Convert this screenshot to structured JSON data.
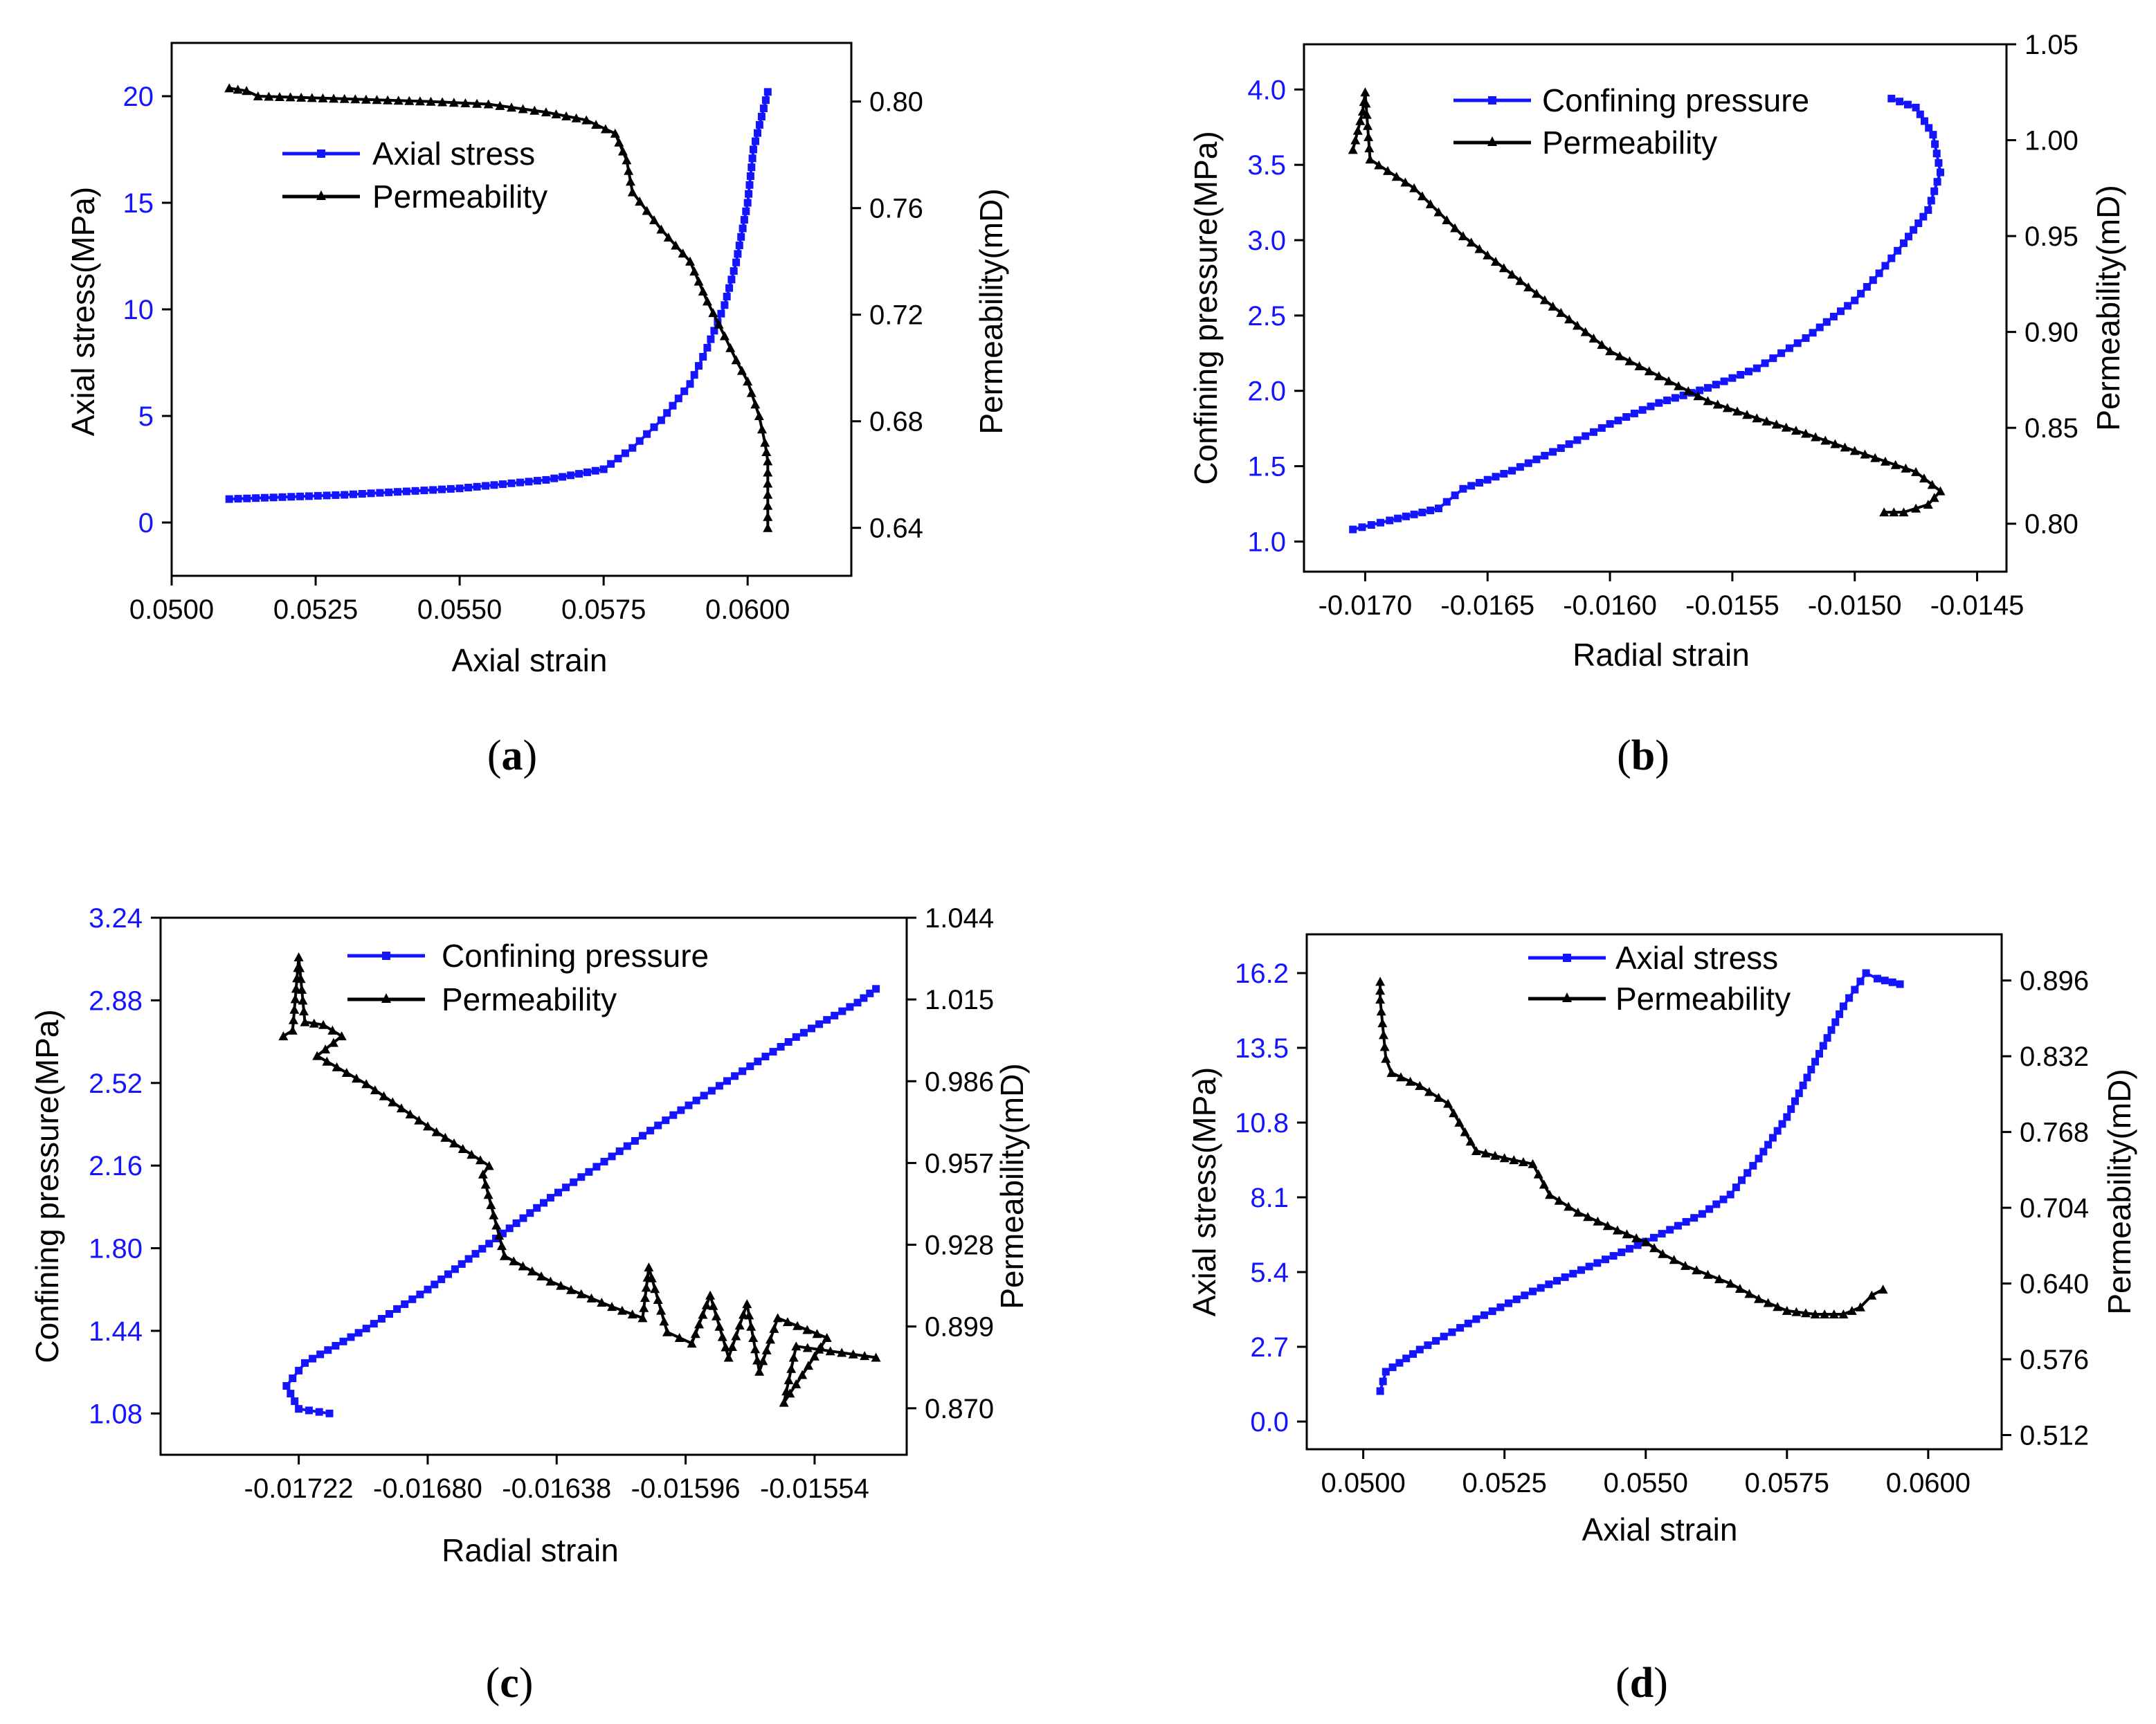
{
  "colors": {
    "blue": "#1414ff",
    "black": "#000000"
  },
  "chart_data": [
    {
      "id": "a",
      "caption_label": "a",
      "type": "line",
      "xlabel": "Axial strain",
      "ylabel": "Axial stress(MPa)",
      "y2label": "Permeability(mD)",
      "xlim": [
        0.05,
        0.0618
      ],
      "ylim": [
        -2.5,
        22.5
      ],
      "y2lim": [
        0.622,
        0.822
      ],
      "xticks": [
        0.05,
        0.0525,
        0.055,
        0.0575,
        0.06
      ],
      "xtick_labels": [
        "0.0500",
        "0.0525",
        "0.0550",
        "0.0575",
        "0.0600"
      ],
      "yticks": [
        0,
        5,
        10,
        15,
        20
      ],
      "ytick_labels": [
        "0",
        "5",
        "10",
        "15",
        "20"
      ],
      "y2ticks": [
        0.64,
        0.68,
        0.72,
        0.76,
        0.8
      ],
      "y2tick_labels": [
        "0.64",
        "0.68",
        "0.72",
        "0.76",
        "0.80"
      ],
      "legend": "upper-left",
      "series": [
        {
          "name": "Axial stress",
          "axis": "left",
          "marker": "square",
          "color": "#1414ff",
          "points": [
            [
              0.051,
              1.1
            ],
            [
              0.053,
              1.3
            ],
            [
              0.055,
              1.6
            ],
            [
              0.0565,
              2.0
            ],
            [
              0.0575,
              2.5
            ],
            [
              0.058,
              3.5
            ],
            [
              0.0585,
              4.8
            ],
            [
              0.059,
              6.5
            ],
            [
              0.0593,
              8.2
            ],
            [
              0.0596,
              10.2
            ],
            [
              0.0598,
              12.2
            ],
            [
              0.06,
              15.0
            ],
            [
              0.0601,
              17.5
            ],
            [
              0.06035,
              20.2
            ]
          ]
        },
        {
          "name": "Permeability",
          "axis": "right",
          "marker": "triangle",
          "color": "#000000",
          "points": [
            [
              0.051,
              0.805
            ],
            [
              0.0513,
              0.804
            ],
            [
              0.0515,
              0.802
            ],
            [
              0.053,
              0.801
            ],
            [
              0.0545,
              0.8
            ],
            [
              0.0555,
              0.799
            ],
            [
              0.0565,
              0.796
            ],
            [
              0.0572,
              0.793
            ],
            [
              0.0577,
              0.788
            ],
            [
              0.0579,
              0.778
            ],
            [
              0.058,
              0.766
            ],
            [
              0.0585,
              0.752
            ],
            [
              0.059,
              0.74
            ],
            [
              0.0593,
              0.725
            ],
            [
              0.0596,
              0.712
            ],
            [
              0.0598,
              0.703
            ],
            [
              0.06,
              0.695
            ],
            [
              0.0602,
              0.682
            ],
            [
              0.0603,
              0.672
            ],
            [
              0.06035,
              0.665
            ],
            [
              0.06035,
              0.64
            ]
          ]
        }
      ]
    },
    {
      "id": "b",
      "caption_label": "b",
      "type": "line",
      "xlabel": "Radial strain",
      "ylabel": "Confining pressure(MPa)",
      "y2label": "Permeability(mD)",
      "xlim": [
        -0.01725,
        -0.01438
      ],
      "ylim": [
        0.8,
        4.3
      ],
      "y2lim": [
        0.775,
        1.05
      ],
      "xticks": [
        -0.017,
        -0.0165,
        -0.016,
        -0.0155,
        -0.015,
        -0.0145
      ],
      "xtick_labels": [
        "-0.0170",
        "-0.0165",
        "-0.0160",
        "-0.0155",
        "-0.0150",
        "-0.0145"
      ],
      "yticks": [
        1.0,
        1.5,
        2.0,
        2.5,
        3.0,
        3.5,
        4.0
      ],
      "ytick_labels": [
        "1.0",
        "1.5",
        "2.0",
        "2.5",
        "3.0",
        "3.5",
        "4.0"
      ],
      "y2ticks": [
        0.8,
        0.85,
        0.9,
        0.95,
        1.0,
        1.05
      ],
      "y2tick_labels": [
        "0.80",
        "0.85",
        "0.90",
        "0.95",
        "1.00",
        "1.05"
      ],
      "legend": "upper-center",
      "series": [
        {
          "name": "Confining pressure",
          "axis": "left",
          "marker": "square",
          "color": "#1414ff",
          "points": [
            [
              -0.01705,
              1.08
            ],
            [
              -0.0169,
              1.14
            ],
            [
              -0.0167,
              1.22
            ],
            [
              -0.0166,
              1.35
            ],
            [
              -0.0164,
              1.47
            ],
            [
              -0.0162,
              1.62
            ],
            [
              -0.016,
              1.78
            ],
            [
              -0.0158,
              1.92
            ],
            [
              -0.0156,
              2.02
            ],
            [
              -0.0154,
              2.15
            ],
            [
              -0.0152,
              2.35
            ],
            [
              -0.015,
              2.6
            ],
            [
              -0.0149,
              2.78
            ],
            [
              -0.0148,
              2.98
            ],
            [
              -0.0147,
              3.2
            ],
            [
              -0.01465,
              3.45
            ],
            [
              -0.01468,
              3.7
            ],
            [
              -0.01475,
              3.88
            ],
            [
              -0.01485,
              3.94
            ]
          ]
        },
        {
          "name": "Permeability",
          "axis": "right",
          "marker": "triangle",
          "color": "#000000",
          "points": [
            [
              -0.01705,
              0.995
            ],
            [
              -0.01701,
              1.015
            ],
            [
              -0.017,
              1.025
            ],
            [
              -0.01698,
              0.99
            ],
            [
              -0.0168,
              0.975
            ],
            [
              -0.0166,
              0.95
            ],
            [
              -0.0164,
              0.93
            ],
            [
              -0.0162,
              0.91
            ],
            [
              -0.016,
              0.89
            ],
            [
              -0.0158,
              0.877
            ],
            [
              -0.0156,
              0.864
            ],
            [
              -0.0154,
              0.855
            ],
            [
              -0.0152,
              0.847
            ],
            [
              -0.015,
              0.838
            ],
            [
              -0.01475,
              0.827
            ],
            [
              -0.01465,
              0.817
            ],
            [
              -0.0147,
              0.81
            ],
            [
              -0.0148,
              0.806
            ],
            [
              -0.01488,
              0.806
            ]
          ]
        }
      ]
    },
    {
      "id": "c",
      "caption_label": "c",
      "type": "line",
      "xlabel": "Radial strain",
      "ylabel": "Confining pressure(MPa)",
      "y2label": "Permeability(mD)",
      "xlim": [
        -0.01767,
        -0.01524
      ],
      "ylim": [
        0.9,
        3.24
      ],
      "y2lim": [
        0.8535,
        1.044
      ],
      "xticks": [
        -0.01722,
        -0.0168,
        -0.01638,
        -0.01596,
        -0.01554
      ],
      "xtick_labels": [
        "-0.01722",
        "-0.01680",
        "-0.01638",
        "-0.01596",
        "-0.01554"
      ],
      "yticks": [
        1.08,
        1.44,
        1.8,
        2.16,
        2.52,
        2.88,
        3.24
      ],
      "ytick_labels": [
        "1.08",
        "1.44",
        "1.80",
        "2.16",
        "2.52",
        "2.88",
        "3.24"
      ],
      "y2ticks": [
        0.87,
        0.899,
        0.928,
        0.957,
        0.986,
        1.015,
        1.044
      ],
      "y2tick_labels": [
        "0.870",
        "0.899",
        "0.928",
        "0.957",
        "0.986",
        "1.015",
        "1.044"
      ],
      "legend": "upper-center",
      "series": [
        {
          "name": "Confining pressure",
          "axis": "left",
          "marker": "square",
          "color": "#1414ff",
          "points": [
            [
              -0.01712,
              1.08
            ],
            [
              -0.01722,
              1.1
            ],
            [
              -0.01726,
              1.2
            ],
            [
              -0.0172,
              1.3
            ],
            [
              -0.017,
              1.45
            ],
            [
              -0.0168,
              1.62
            ],
            [
              -0.0166,
              1.82
            ],
            [
              -0.0164,
              2.02
            ],
            [
              -0.0162,
              2.2
            ],
            [
              -0.016,
              2.38
            ],
            [
              -0.0158,
              2.55
            ],
            [
              -0.0156,
              2.72
            ],
            [
              -0.0154,
              2.87
            ],
            [
              -0.01534,
              2.93
            ]
          ]
        },
        {
          "name": "Permeability",
          "axis": "right",
          "marker": "triangle",
          "color": "#000000",
          "points": [
            [
              -0.01727,
              1.002
            ],
            [
              -0.01724,
              1.004
            ],
            [
              -0.01722,
              1.03
            ],
            [
              -0.0172,
              1.007
            ],
            [
              -0.01714,
              1.006
            ],
            [
              -0.01708,
              1.002
            ],
            [
              -0.01716,
              0.995
            ],
            [
              -0.017,
              0.985
            ],
            [
              -0.0168,
              0.97
            ],
            [
              -0.0166,
              0.956
            ],
            [
              -0.01662,
              0.953
            ],
            [
              -0.01655,
              0.924
            ],
            [
              -0.0164,
              0.915
            ],
            [
              -0.0162,
              0.906
            ],
            [
              -0.0161,
              0.902
            ],
            [
              -0.01608,
              0.92
            ],
            [
              -0.01602,
              0.897
            ],
            [
              -0.01594,
              0.893
            ],
            [
              -0.01588,
              0.91
            ],
            [
              -0.01582,
              0.888
            ],
            [
              -0.01576,
              0.907
            ],
            [
              -0.01572,
              0.883
            ],
            [
              -0.01566,
              0.902
            ],
            [
              -0.0155,
              0.895
            ],
            [
              -0.01564,
              0.872
            ],
            [
              -0.0156,
              0.892
            ],
            [
              -0.01534,
              0.888
            ]
          ]
        }
      ]
    },
    {
      "id": "d",
      "caption_label": "d",
      "type": "line",
      "xlabel": "Axial strain",
      "ylabel": "Axial stress(MPa)",
      "y2label": "Permeability(mD)",
      "xlim": [
        0.049,
        0.0613
      ],
      "ylim": [
        -1.0,
        17.6
      ],
      "y2lim": [
        0.5,
        0.935
      ],
      "xticks": [
        0.05,
        0.0525,
        0.055,
        0.0575,
        0.06
      ],
      "xtick_labels": [
        "0.0500",
        "0.0525",
        "0.0550",
        "0.0575",
        "0.0600"
      ],
      "yticks": [
        0.0,
        2.7,
        5.4,
        8.1,
        10.8,
        13.5,
        16.2
      ],
      "ytick_labels": [
        "0.0",
        "2.7",
        "5.4",
        "8.1",
        "10.8",
        "13.5",
        "16.2"
      ],
      "y2ticks": [
        0.512,
        0.576,
        0.64,
        0.704,
        0.768,
        0.832,
        0.896
      ],
      "y2tick_labels": [
        "0.512",
        "0.576",
        "0.640",
        "0.704",
        "0.768",
        "0.832",
        "0.896"
      ],
      "legend": "upper-center",
      "series": [
        {
          "name": "Axial stress",
          "axis": "left",
          "marker": "square",
          "color": "#1414ff",
          "points": [
            [
              0.0503,
              1.1
            ],
            [
              0.0504,
              1.8
            ],
            [
              0.051,
              2.6
            ],
            [
              0.052,
              3.7
            ],
            [
              0.053,
              4.7
            ],
            [
              0.054,
              5.6
            ],
            [
              0.055,
              6.5
            ],
            [
              0.056,
              7.5
            ],
            [
              0.0565,
              8.2
            ],
            [
              0.057,
              9.5
            ],
            [
              0.0575,
              11.0
            ],
            [
              0.058,
              13.0
            ],
            [
              0.0585,
              15.0
            ],
            [
              0.0589,
              16.2
            ],
            [
              0.0591,
              16.0
            ],
            [
              0.0595,
              15.8
            ]
          ]
        },
        {
          "name": "Permeability",
          "axis": "right",
          "marker": "triangle",
          "color": "#000000",
          "points": [
            [
              0.0503,
              0.895
            ],
            [
              0.0503,
              0.88
            ],
            [
              0.0504,
              0.83
            ],
            [
              0.0505,
              0.818
            ],
            [
              0.051,
              0.807
            ],
            [
              0.0515,
              0.792
            ],
            [
              0.052,
              0.752
            ],
            [
              0.0525,
              0.746
            ],
            [
              0.053,
              0.741
            ],
            [
              0.0533,
              0.715
            ],
            [
              0.0538,
              0.7
            ],
            [
              0.0545,
              0.685
            ],
            [
              0.055,
              0.675
            ],
            [
              0.0553,
              0.665
            ],
            [
              0.0557,
              0.655
            ],
            [
              0.0565,
              0.64
            ],
            [
              0.057,
              0.627
            ],
            [
              0.0575,
              0.617
            ],
            [
              0.058,
              0.614
            ],
            [
              0.0585,
              0.614
            ],
            [
              0.0588,
              0.62
            ],
            [
              0.059,
              0.63
            ],
            [
              0.0592,
              0.635
            ]
          ]
        }
      ]
    }
  ]
}
